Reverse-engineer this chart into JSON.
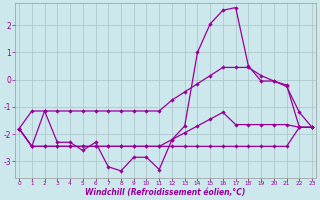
{
  "xlabel": "Windchill (Refroidissement éolien,°C)",
  "background_color": "#cce8ed",
  "line_color": "#990099",
  "grid_color": "#b0c8cc",
  "x_ticks": [
    0,
    1,
    2,
    3,
    4,
    5,
    6,
    7,
    8,
    9,
    10,
    11,
    12,
    13,
    14,
    15,
    16,
    17,
    18,
    19,
    20,
    21,
    22,
    23
  ],
  "y_ticks": [
    -3,
    -2,
    -1,
    0,
    1,
    2
  ],
  "ylim": [
    -3.6,
    2.8
  ],
  "xlim": [
    -0.3,
    23.3
  ],
  "series": {
    "line_top": [
      -1.8,
      -1.15,
      -1.15,
      -1.15,
      -1.15,
      -1.15,
      -1.15,
      -1.15,
      -1.15,
      -1.15,
      -1.15,
      -1.15,
      -0.75,
      -0.45,
      -0.15,
      0.15,
      0.45,
      0.45,
      0.45,
      0.15,
      -0.05,
      -0.2,
      -1.75,
      -1.75
    ],
    "line_mid": [
      -1.8,
      -2.45,
      -2.45,
      -2.45,
      -2.45,
      -2.45,
      -2.45,
      -2.45,
      -2.45,
      -2.45,
      -2.45,
      -2.45,
      -2.2,
      -1.95,
      -1.7,
      -1.45,
      -1.2,
      -1.65,
      -1.65,
      -1.65,
      -1.65,
      -1.65,
      -1.75,
      -1.75
    ],
    "line_low": [
      -1.8,
      -2.45,
      -2.45,
      -2.45,
      -2.45,
      -2.45,
      -2.45,
      -2.45,
      -2.45,
      -2.45,
      -2.45,
      -2.45,
      -2.45,
      -2.45,
      -2.45,
      -2.45,
      -2.45,
      -2.45,
      -2.45,
      -2.45,
      -2.45,
      -2.45,
      -1.75,
      -1.75
    ],
    "line_main": [
      -1.8,
      -2.45,
      -1.15,
      -2.3,
      -2.3,
      -2.6,
      -2.3,
      -3.2,
      -3.35,
      -2.85,
      -2.85,
      -3.3,
      -2.2,
      -1.7,
      1.0,
      2.05,
      2.55,
      2.65,
      0.5,
      -0.05,
      -0.05,
      -0.25,
      -1.2,
      -1.75
    ]
  }
}
